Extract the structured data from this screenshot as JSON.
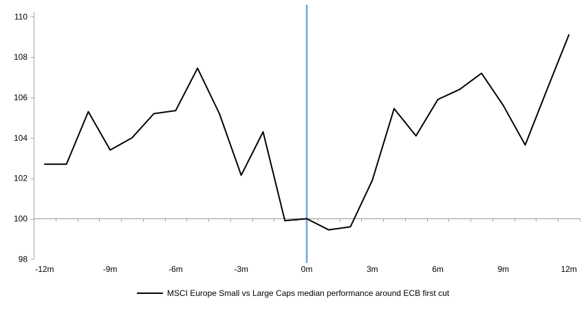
{
  "chart_data": {
    "type": "line",
    "title": "",
    "x": [
      -12,
      -11,
      -10,
      -9,
      -8,
      -7,
      -6,
      -5,
      -4,
      -3,
      -2,
      -1,
      0,
      1,
      2,
      3,
      4,
      5,
      6,
      7,
      8,
      9,
      10,
      11,
      12
    ],
    "series": [
      {
        "name": "MSCI Europe Small vs Large Caps median performance around ECB first cut",
        "color": "#000000",
        "values": [
          102.7,
          102.7,
          105.3,
          103.4,
          104.0,
          105.2,
          105.35,
          107.45,
          105.2,
          102.15,
          104.3,
          99.9,
          100.0,
          99.45,
          99.6,
          101.9,
          105.45,
          104.1,
          105.9,
          106.4,
          107.2,
          105.6,
          103.65,
          106.4,
          109.1
        ]
      }
    ],
    "y_axis": {
      "min": 98,
      "max": 110,
      "tick_step": 2,
      "ticks": [
        98,
        100,
        102,
        104,
        106,
        108,
        110
      ],
      "tick_labels": [
        "98",
        "100",
        "102",
        "104",
        "106",
        "108",
        "110"
      ]
    },
    "x_axis": {
      "tick_labels": [
        "-12m",
        "-9m",
        "-6m",
        "-3m",
        "0m",
        "3m",
        "6m",
        "9m",
        "12m"
      ],
      "tick_label_months": [
        -12,
        -9,
        -6,
        -3,
        0,
        3,
        6,
        9,
        12
      ],
      "minor_ticks_between_categories": true
    },
    "reference": {
      "vertical_event_line_x": 0,
      "horizontal_baseline_y": 100
    },
    "legend_position": "bottom",
    "grid": "off",
    "colors": {
      "series": "#000000",
      "event_line": "#74A3CF",
      "axis": "#A6A6A6",
      "text": "#000000"
    }
  }
}
